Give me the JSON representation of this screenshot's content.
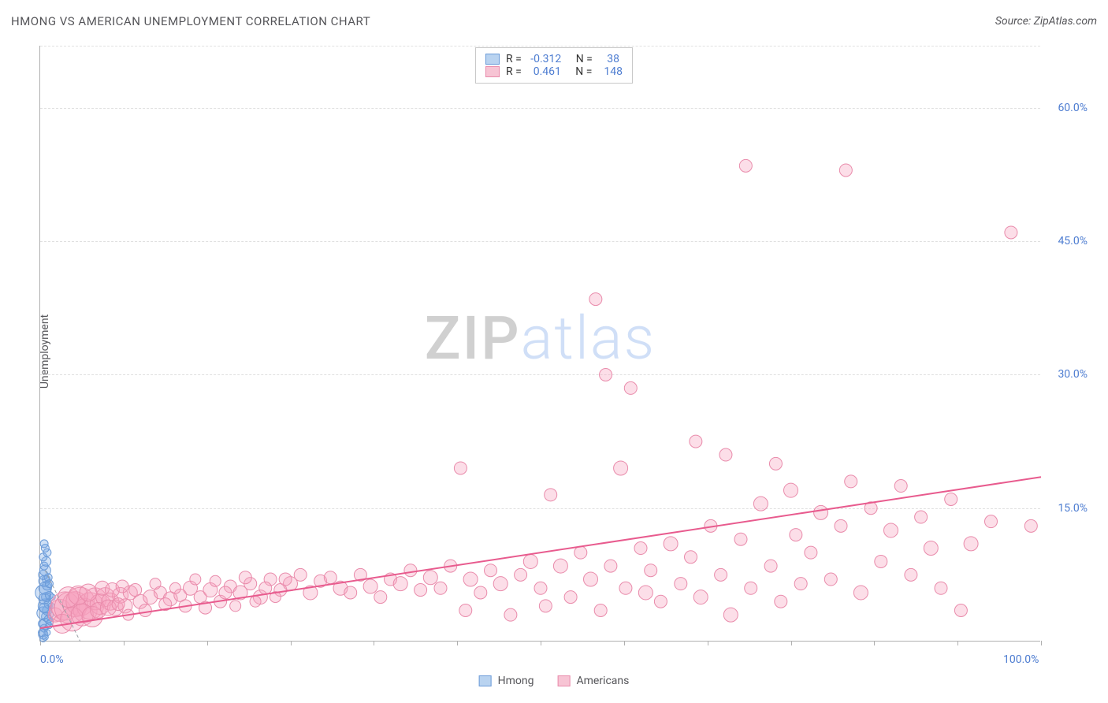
{
  "title": "HMONG VS AMERICAN UNEMPLOYMENT CORRELATION CHART",
  "source_label": "Source: ZipAtlas.com",
  "ylabel": "Unemployment",
  "watermark": {
    "part1": "ZIP",
    "part2": "atlas"
  },
  "chart": {
    "type": "scatter",
    "xlim": [
      0,
      100
    ],
    "ylim": [
      0,
      67
    ],
    "x_ticks": [
      0,
      100
    ],
    "y_ticks": [
      15,
      30,
      45,
      60
    ],
    "y_tick_labels": [
      "15.0%",
      "30.0%",
      "45.0%",
      "60.0%"
    ],
    "x_tick_labels": [
      "0.0%",
      "100.0%"
    ],
    "x_axis_minor_ticks": [
      0,
      8.33,
      16.67,
      25,
      33.33,
      41.67,
      50,
      58.33,
      66.67,
      75,
      83.33,
      91.67,
      100
    ],
    "grid_color": "#e0e0e0",
    "axis_color": "#b0b0b0",
    "background_color": "#ffffff",
    "tick_label_color": "#4e7dd1"
  },
  "trend_lines": [
    {
      "series": "hmong",
      "x1": 0.5,
      "y1": 8,
      "x2": 4,
      "y2": 0,
      "color": "#9aa0a6",
      "dash": "4,3",
      "width": 1
    },
    {
      "series": "americans",
      "x1": 0,
      "y1": 1.5,
      "x2": 100,
      "y2": 18.5,
      "color": "#e85b8e",
      "dash": "none",
      "width": 2
    }
  ],
  "stats_legend": {
    "rows": [
      {
        "swatch_fill": "#b9d3f0",
        "swatch_border": "#6c9bd8",
        "r_label": "R =",
        "r_value": "-0.312",
        "n_label": "N =",
        "n_value": "38"
      },
      {
        "swatch_fill": "#f7c4d4",
        "swatch_border": "#e98bab",
        "r_label": "R =",
        "r_value": "0.461",
        "n_label": "N =",
        "n_value": "148"
      }
    ]
  },
  "bottom_legend": [
    {
      "label": "Hmong",
      "fill": "#b9d3f0",
      "border": "#6c9bd8"
    },
    {
      "label": "Americans",
      "fill": "#f7c4d4",
      "border": "#e98bab"
    }
  ],
  "series": [
    {
      "name": "Hmong",
      "marker_fill": "rgba(120,170,230,0.35)",
      "marker_stroke": "#6c9bd8",
      "points": [
        {
          "x": 0.3,
          "y": 0.8,
          "r": 6
        },
        {
          "x": 0.4,
          "y": 1.5,
          "r": 5
        },
        {
          "x": 0.5,
          "y": 2.0,
          "r": 7
        },
        {
          "x": 0.6,
          "y": 2.8,
          "r": 6
        },
        {
          "x": 0.3,
          "y": 3.2,
          "r": 8
        },
        {
          "x": 0.7,
          "y": 3.5,
          "r": 6
        },
        {
          "x": 0.5,
          "y": 4.0,
          "r": 9
        },
        {
          "x": 0.8,
          "y": 4.2,
          "r": 5
        },
        {
          "x": 0.4,
          "y": 4.8,
          "r": 7
        },
        {
          "x": 0.6,
          "y": 5.0,
          "r": 6
        },
        {
          "x": 0.3,
          "y": 5.5,
          "r": 10
        },
        {
          "x": 0.9,
          "y": 5.2,
          "r": 5
        },
        {
          "x": 0.5,
          "y": 6.0,
          "r": 8
        },
        {
          "x": 0.7,
          "y": 6.3,
          "r": 6
        },
        {
          "x": 0.4,
          "y": 6.8,
          "r": 7
        },
        {
          "x": 0.6,
          "y": 7.0,
          "r": 5
        },
        {
          "x": 0.3,
          "y": 7.5,
          "r": 6
        },
        {
          "x": 0.8,
          "y": 7.2,
          "r": 5
        },
        {
          "x": 0.5,
          "y": 8.0,
          "r": 7
        },
        {
          "x": 0.4,
          "y": 8.5,
          "r": 5
        },
        {
          "x": 0.6,
          "y": 9.0,
          "r": 6
        },
        {
          "x": 0.3,
          "y": 9.5,
          "r": 5
        },
        {
          "x": 0.7,
          "y": 10.0,
          "r": 5
        },
        {
          "x": 0.5,
          "y": 10.5,
          "r": 5
        },
        {
          "x": 0.4,
          "y": 11.0,
          "r": 5
        },
        {
          "x": 0.8,
          "y": 2.5,
          "r": 5
        },
        {
          "x": 1.0,
          "y": 3.0,
          "r": 4
        },
        {
          "x": 1.1,
          "y": 4.0,
          "r": 4
        },
        {
          "x": 1.2,
          "y": 5.0,
          "r": 4
        },
        {
          "x": 0.2,
          "y": 1.0,
          "r": 5
        },
        {
          "x": 0.2,
          "y": 2.0,
          "r": 5
        },
        {
          "x": 0.9,
          "y": 6.5,
          "r": 5
        },
        {
          "x": 0.3,
          "y": 0.3,
          "r": 4
        },
        {
          "x": 0.5,
          "y": 0.5,
          "r": 4
        },
        {
          "x": 0.7,
          "y": 1.0,
          "r": 4
        },
        {
          "x": 0.9,
          "y": 1.8,
          "r": 4
        },
        {
          "x": 1.0,
          "y": 2.2,
          "r": 4
        },
        {
          "x": 0.4,
          "y": 3.8,
          "r": 6
        }
      ]
    },
    {
      "name": "Americans",
      "marker_fill": "rgba(245,160,190,0.35)",
      "marker_stroke": "#e98bab",
      "points": [
        {
          "x": 1.5,
          "y": 3.0,
          "r": 9
        },
        {
          "x": 2.0,
          "y": 3.5,
          "r": 14
        },
        {
          "x": 2.5,
          "y": 4.0,
          "r": 18
        },
        {
          "x": 3.0,
          "y": 3.8,
          "r": 20
        },
        {
          "x": 3.5,
          "y": 4.2,
          "r": 16
        },
        {
          "x": 4.0,
          "y": 4.5,
          "r": 18
        },
        {
          "x": 4.5,
          "y": 3.5,
          "r": 15
        },
        {
          "x": 5.0,
          "y": 4.0,
          "r": 17
        },
        {
          "x": 5.5,
          "y": 4.8,
          "r": 14
        },
        {
          "x": 6.0,
          "y": 4.2,
          "r": 13
        },
        {
          "x": 6.5,
          "y": 5.0,
          "r": 12
        },
        {
          "x": 7.0,
          "y": 4.5,
          "r": 11
        },
        {
          "x": 7.5,
          "y": 3.8,
          "r": 10
        },
        {
          "x": 8.0,
          "y": 5.2,
          "r": 10
        },
        {
          "x": 8.5,
          "y": 4.0,
          "r": 9
        },
        {
          "x": 9.0,
          "y": 5.5,
          "r": 9
        },
        {
          "x": 10.0,
          "y": 4.5,
          "r": 9
        },
        {
          "x": 11.0,
          "y": 5.0,
          "r": 9
        },
        {
          "x": 12.0,
          "y": 5.5,
          "r": 8
        },
        {
          "x": 13.0,
          "y": 4.8,
          "r": 9
        },
        {
          "x": 14.0,
          "y": 5.2,
          "r": 8
        },
        {
          "x": 15.0,
          "y": 6.0,
          "r": 9
        },
        {
          "x": 16.0,
          "y": 5.0,
          "r": 8
        },
        {
          "x": 17.0,
          "y": 5.8,
          "r": 9
        },
        {
          "x": 18.0,
          "y": 4.5,
          "r": 8
        },
        {
          "x": 19.0,
          "y": 6.2,
          "r": 8
        },
        {
          "x": 20.0,
          "y": 5.5,
          "r": 9
        },
        {
          "x": 21.0,
          "y": 6.5,
          "r": 8
        },
        {
          "x": 22.0,
          "y": 5.0,
          "r": 9
        },
        {
          "x": 23.0,
          "y": 7.0,
          "r": 8
        },
        {
          "x": 24.0,
          "y": 5.8,
          "r": 8
        },
        {
          "x": 25.0,
          "y": 6.5,
          "r": 9
        },
        {
          "x": 26.0,
          "y": 7.5,
          "r": 8
        },
        {
          "x": 27.0,
          "y": 5.5,
          "r": 9
        },
        {
          "x": 28.0,
          "y": 6.8,
          "r": 8
        },
        {
          "x": 29.0,
          "y": 7.2,
          "r": 8
        },
        {
          "x": 30.0,
          "y": 6.0,
          "r": 9
        },
        {
          "x": 31.0,
          "y": 5.5,
          "r": 8
        },
        {
          "x": 32.0,
          "y": 7.5,
          "r": 8
        },
        {
          "x": 33.0,
          "y": 6.2,
          "r": 9
        },
        {
          "x": 34.0,
          "y": 5.0,
          "r": 8
        },
        {
          "x": 35.0,
          "y": 7.0,
          "r": 8
        },
        {
          "x": 36.0,
          "y": 6.5,
          "r": 9
        },
        {
          "x": 37.0,
          "y": 8.0,
          "r": 8
        },
        {
          "x": 38.0,
          "y": 5.8,
          "r": 8
        },
        {
          "x": 39.0,
          "y": 7.2,
          "r": 9
        },
        {
          "x": 40.0,
          "y": 6.0,
          "r": 8
        },
        {
          "x": 41.0,
          "y": 8.5,
          "r": 8
        },
        {
          "x": 42.0,
          "y": 19.5,
          "r": 8
        },
        {
          "x": 42.5,
          "y": 3.5,
          "r": 8
        },
        {
          "x": 43.0,
          "y": 7.0,
          "r": 9
        },
        {
          "x": 44.0,
          "y": 5.5,
          "r": 8
        },
        {
          "x": 45.0,
          "y": 8.0,
          "r": 8
        },
        {
          "x": 46.0,
          "y": 6.5,
          "r": 9
        },
        {
          "x": 47.0,
          "y": 3.0,
          "r": 8
        },
        {
          "x": 48.0,
          "y": 7.5,
          "r": 8
        },
        {
          "x": 49.0,
          "y": 9.0,
          "r": 9
        },
        {
          "x": 50.0,
          "y": 6.0,
          "r": 8
        },
        {
          "x": 50.5,
          "y": 4.0,
          "r": 8
        },
        {
          "x": 51.0,
          "y": 16.5,
          "r": 8
        },
        {
          "x": 52.0,
          "y": 8.5,
          "r": 9
        },
        {
          "x": 53.0,
          "y": 5.0,
          "r": 8
        },
        {
          "x": 54.0,
          "y": 10.0,
          "r": 8
        },
        {
          "x": 55.0,
          "y": 7.0,
          "r": 9
        },
        {
          "x": 55.5,
          "y": 38.5,
          "r": 8
        },
        {
          "x": 56.0,
          "y": 3.5,
          "r": 8
        },
        {
          "x": 56.5,
          "y": 30.0,
          "r": 8
        },
        {
          "x": 57.0,
          "y": 8.5,
          "r": 8
        },
        {
          "x": 58.0,
          "y": 19.5,
          "r": 9
        },
        {
          "x": 58.5,
          "y": 6.0,
          "r": 8
        },
        {
          "x": 59.0,
          "y": 28.5,
          "r": 8
        },
        {
          "x": 60.0,
          "y": 10.5,
          "r": 8
        },
        {
          "x": 60.5,
          "y": 5.5,
          "r": 9
        },
        {
          "x": 61.0,
          "y": 8.0,
          "r": 8
        },
        {
          "x": 62.0,
          "y": 4.5,
          "r": 8
        },
        {
          "x": 63.0,
          "y": 11.0,
          "r": 9
        },
        {
          "x": 64.0,
          "y": 6.5,
          "r": 8
        },
        {
          "x": 65.0,
          "y": 9.5,
          "r": 8
        },
        {
          "x": 65.5,
          "y": 22.5,
          "r": 8
        },
        {
          "x": 66.0,
          "y": 5.0,
          "r": 9
        },
        {
          "x": 67.0,
          "y": 13.0,
          "r": 8
        },
        {
          "x": 68.0,
          "y": 7.5,
          "r": 8
        },
        {
          "x": 68.5,
          "y": 21.0,
          "r": 8
        },
        {
          "x": 69.0,
          "y": 3.0,
          "r": 9
        },
        {
          "x": 70.0,
          "y": 11.5,
          "r": 8
        },
        {
          "x": 70.5,
          "y": 53.5,
          "r": 8
        },
        {
          "x": 71.0,
          "y": 6.0,
          "r": 8
        },
        {
          "x": 72.0,
          "y": 15.5,
          "r": 9
        },
        {
          "x": 73.0,
          "y": 8.5,
          "r": 8
        },
        {
          "x": 73.5,
          "y": 20.0,
          "r": 8
        },
        {
          "x": 74.0,
          "y": 4.5,
          "r": 8
        },
        {
          "x": 75.0,
          "y": 17.0,
          "r": 9
        },
        {
          "x": 75.5,
          "y": 12.0,
          "r": 8
        },
        {
          "x": 76.0,
          "y": 6.5,
          "r": 8
        },
        {
          "x": 77.0,
          "y": 10.0,
          "r": 8
        },
        {
          "x": 78.0,
          "y": 14.5,
          "r": 9
        },
        {
          "x": 79.0,
          "y": 7.0,
          "r": 8
        },
        {
          "x": 80.0,
          "y": 13.0,
          "r": 8
        },
        {
          "x": 80.5,
          "y": 53.0,
          "r": 8
        },
        {
          "x": 81.0,
          "y": 18.0,
          "r": 8
        },
        {
          "x": 82.0,
          "y": 5.5,
          "r": 9
        },
        {
          "x": 83.0,
          "y": 15.0,
          "r": 8
        },
        {
          "x": 84.0,
          "y": 9.0,
          "r": 8
        },
        {
          "x": 85.0,
          "y": 12.5,
          "r": 9
        },
        {
          "x": 86.0,
          "y": 17.5,
          "r": 8
        },
        {
          "x": 87.0,
          "y": 7.5,
          "r": 8
        },
        {
          "x": 88.0,
          "y": 14.0,
          "r": 8
        },
        {
          "x": 89.0,
          "y": 10.5,
          "r": 9
        },
        {
          "x": 90.0,
          "y": 6.0,
          "r": 8
        },
        {
          "x": 91.0,
          "y": 16.0,
          "r": 8
        },
        {
          "x": 92.0,
          "y": 3.5,
          "r": 8
        },
        {
          "x": 93.0,
          "y": 11.0,
          "r": 9
        },
        {
          "x": 95.0,
          "y": 13.5,
          "r": 8
        },
        {
          "x": 97.0,
          "y": 46.0,
          "r": 8
        },
        {
          "x": 99.0,
          "y": 13.0,
          "r": 8
        },
        {
          "x": 2.2,
          "y": 2.0,
          "r": 12
        },
        {
          "x": 2.8,
          "y": 5.0,
          "r": 13
        },
        {
          "x": 3.2,
          "y": 2.5,
          "r": 15
        },
        {
          "x": 3.8,
          "y": 5.2,
          "r": 12
        },
        {
          "x": 4.2,
          "y": 3.0,
          "r": 14
        },
        {
          "x": 4.8,
          "y": 5.5,
          "r": 11
        },
        {
          "x": 5.2,
          "y": 2.8,
          "r": 13
        },
        {
          "x": 5.8,
          "y": 3.5,
          "r": 10
        },
        {
          "x": 6.2,
          "y": 6.0,
          "r": 9
        },
        {
          "x": 6.8,
          "y": 3.8,
          "r": 10
        },
        {
          "x": 7.2,
          "y": 5.8,
          "r": 9
        },
        {
          "x": 7.8,
          "y": 4.2,
          "r": 8
        },
        {
          "x": 8.2,
          "y": 6.2,
          "r": 8
        },
        {
          "x": 8.8,
          "y": 3.0,
          "r": 7
        },
        {
          "x": 9.5,
          "y": 5.8,
          "r": 8
        },
        {
          "x": 10.5,
          "y": 3.5,
          "r": 8
        },
        {
          "x": 11.5,
          "y": 6.5,
          "r": 7
        },
        {
          "x": 12.5,
          "y": 4.2,
          "r": 8
        },
        {
          "x": 13.5,
          "y": 6.0,
          "r": 7
        },
        {
          "x": 14.5,
          "y": 4.0,
          "r": 8
        },
        {
          "x": 15.5,
          "y": 7.0,
          "r": 7
        },
        {
          "x": 16.5,
          "y": 3.8,
          "r": 8
        },
        {
          "x": 17.5,
          "y": 6.8,
          "r": 7
        },
        {
          "x": 18.5,
          "y": 5.5,
          "r": 8
        },
        {
          "x": 19.5,
          "y": 4.0,
          "r": 7
        },
        {
          "x": 20.5,
          "y": 7.2,
          "r": 8
        },
        {
          "x": 21.5,
          "y": 4.5,
          "r": 7
        },
        {
          "x": 22.5,
          "y": 6.0,
          "r": 8
        },
        {
          "x": 23.5,
          "y": 5.0,
          "r": 7
        },
        {
          "x": 24.5,
          "y": 7.0,
          "r": 8
        }
      ]
    }
  ]
}
